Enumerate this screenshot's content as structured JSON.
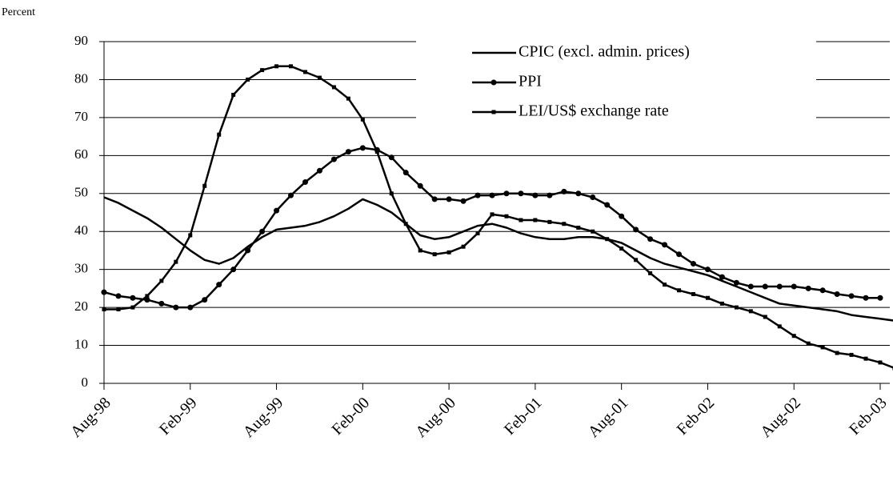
{
  "chart_data": {
    "type": "line",
    "y_label": "Percent",
    "categories": [
      "Aug-98",
      null,
      null,
      null,
      null,
      null,
      "Feb-99",
      null,
      null,
      null,
      null,
      null,
      "Aug-99",
      null,
      null,
      null,
      null,
      null,
      "Feb-00",
      null,
      null,
      null,
      null,
      null,
      "Aug-00",
      null,
      null,
      null,
      null,
      null,
      "Feb-01",
      null,
      null,
      null,
      null,
      null,
      "Aug-01",
      null,
      null,
      null,
      null,
      null,
      "Feb-02",
      null,
      null,
      null,
      null,
      null,
      "Aug-02",
      null,
      null,
      null,
      null,
      null,
      "Feb-03",
      null
    ],
    "series": [
      {
        "name": "CPIC (excl. admin. prices)",
        "color": "#000000",
        "marker": "none",
        "values": [
          49,
          47.5,
          45.5,
          43.5,
          41,
          38,
          35,
          32.5,
          31.5,
          33,
          36,
          38.5,
          40.5,
          41,
          41.5,
          42.5,
          44,
          46,
          48.5,
          47,
          45,
          42,
          39,
          38,
          38.5,
          40,
          41.5,
          42,
          41,
          39.5,
          38.5,
          38,
          38,
          38.5,
          38.5,
          38,
          37,
          35,
          33,
          31.5,
          30.5,
          29.5,
          28.5,
          27,
          25.5,
          24,
          22.5,
          21,
          20.5,
          20,
          19.5,
          19,
          18,
          17.5,
          17,
          16.5
        ]
      },
      {
        "name": "PPI",
        "color": "#000000",
        "marker": "circle",
        "values": [
          24,
          23,
          22.5,
          22,
          21,
          20,
          20,
          22,
          26,
          30,
          35,
          40,
          45.5,
          49.5,
          53,
          56,
          59,
          61,
          62,
          61.5,
          59.5,
          55.5,
          52,
          48.5,
          48.5,
          48,
          49.5,
          49.5,
          50,
          50,
          49.5,
          49.5,
          50.5,
          50,
          49,
          47,
          44,
          40.5,
          38,
          36.5,
          34,
          31.5,
          30,
          28,
          26.5,
          25.5,
          25.5,
          25.5,
          25.5,
          25,
          24.5,
          23.5,
          23,
          22.5,
          22.5,
          null
        ]
      },
      {
        "name": "LEI/US$ exchange rate",
        "color": "#000000",
        "marker": "square",
        "values": [
          19.5,
          19.5,
          20,
          23,
          27,
          32,
          39,
          52,
          65.5,
          76,
          80,
          82.5,
          83.5,
          83.5,
          82,
          80.5,
          78,
          75,
          69.5,
          61,
          50,
          42,
          35,
          34,
          34.5,
          36,
          39.5,
          44.5,
          44,
          43,
          43,
          42.5,
          42,
          41,
          40,
          38,
          35.5,
          32.5,
          29,
          26,
          24.5,
          23.5,
          22.5,
          21,
          20,
          19,
          17.5,
          15,
          12.5,
          10.5,
          9.5,
          8,
          7.5,
          6.5,
          5.5,
          4
        ]
      }
    ],
    "ylim": [
      0,
      90
    ],
    "yticks": [
      0,
      10,
      20,
      30,
      40,
      50,
      60,
      70,
      80,
      90
    ],
    "grid": true,
    "legend": "top-right"
  }
}
